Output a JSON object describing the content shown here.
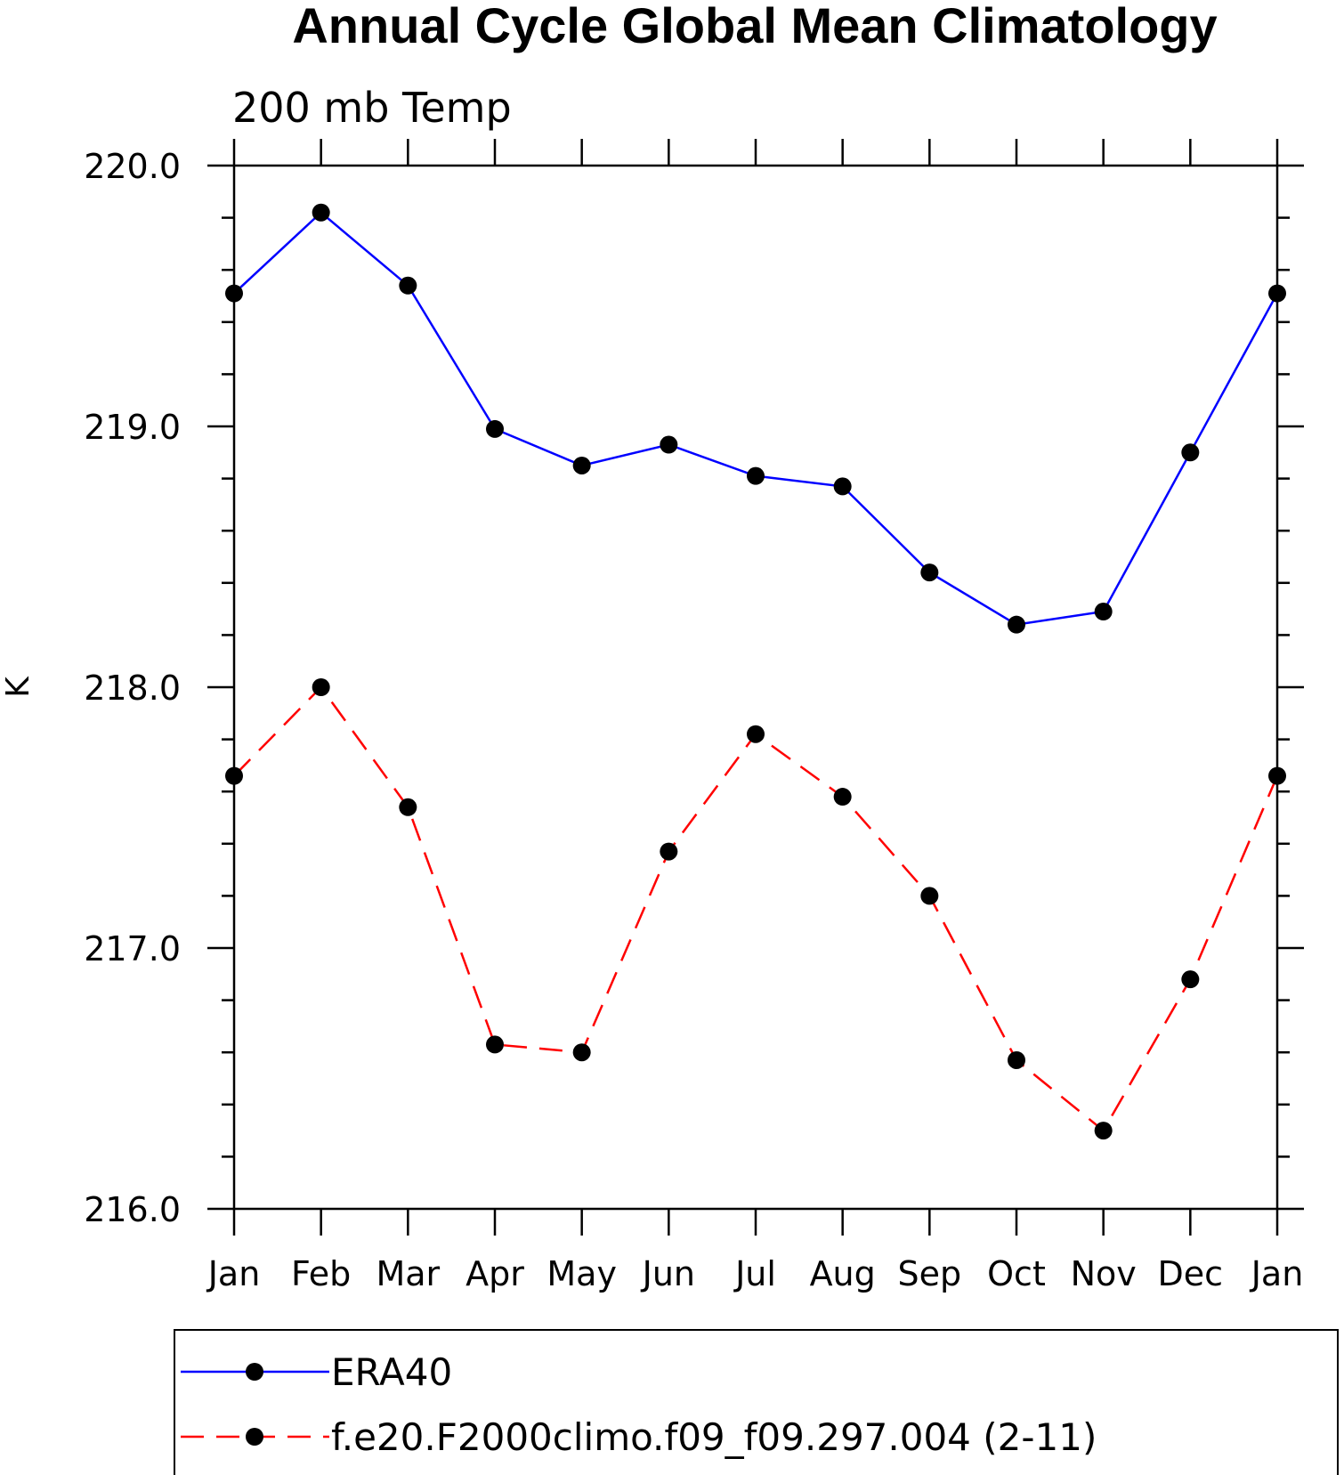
{
  "chart_data": {
    "type": "line",
    "title": "Annual Cycle Global Mean Climatology",
    "subtitle": "200 mb Temp",
    "xlabel": "",
    "ylabel": "K",
    "categories": [
      "Jan",
      "Feb",
      "Mar",
      "Apr",
      "May",
      "Jun",
      "Jul",
      "Aug",
      "Sep",
      "Oct",
      "Nov",
      "Dec",
      "Jan"
    ],
    "ylim": [
      216.0,
      220.0
    ],
    "yticks": [
      "216.0",
      "217.0",
      "218.0",
      "219.0",
      "220.0"
    ],
    "grid": false,
    "legend_position": "bottom",
    "series": [
      {
        "name": "ERA40",
        "color": "#0000ff",
        "dash": "solid",
        "marker": "filled-circle",
        "values": [
          219.51,
          219.82,
          219.54,
          218.99,
          218.85,
          218.93,
          218.81,
          218.77,
          218.44,
          218.24,
          218.29,
          218.9,
          219.51
        ]
      },
      {
        "name": "f.e20.F2000climo.f09_f09.297.004 (2-11)",
        "color": "#ff0000",
        "dash": "dashed",
        "marker": "filled-circle",
        "values": [
          217.66,
          218.0,
          217.54,
          216.63,
          216.6,
          217.37,
          217.82,
          217.58,
          217.2,
          216.57,
          216.3,
          216.88,
          217.66
        ]
      }
    ]
  }
}
